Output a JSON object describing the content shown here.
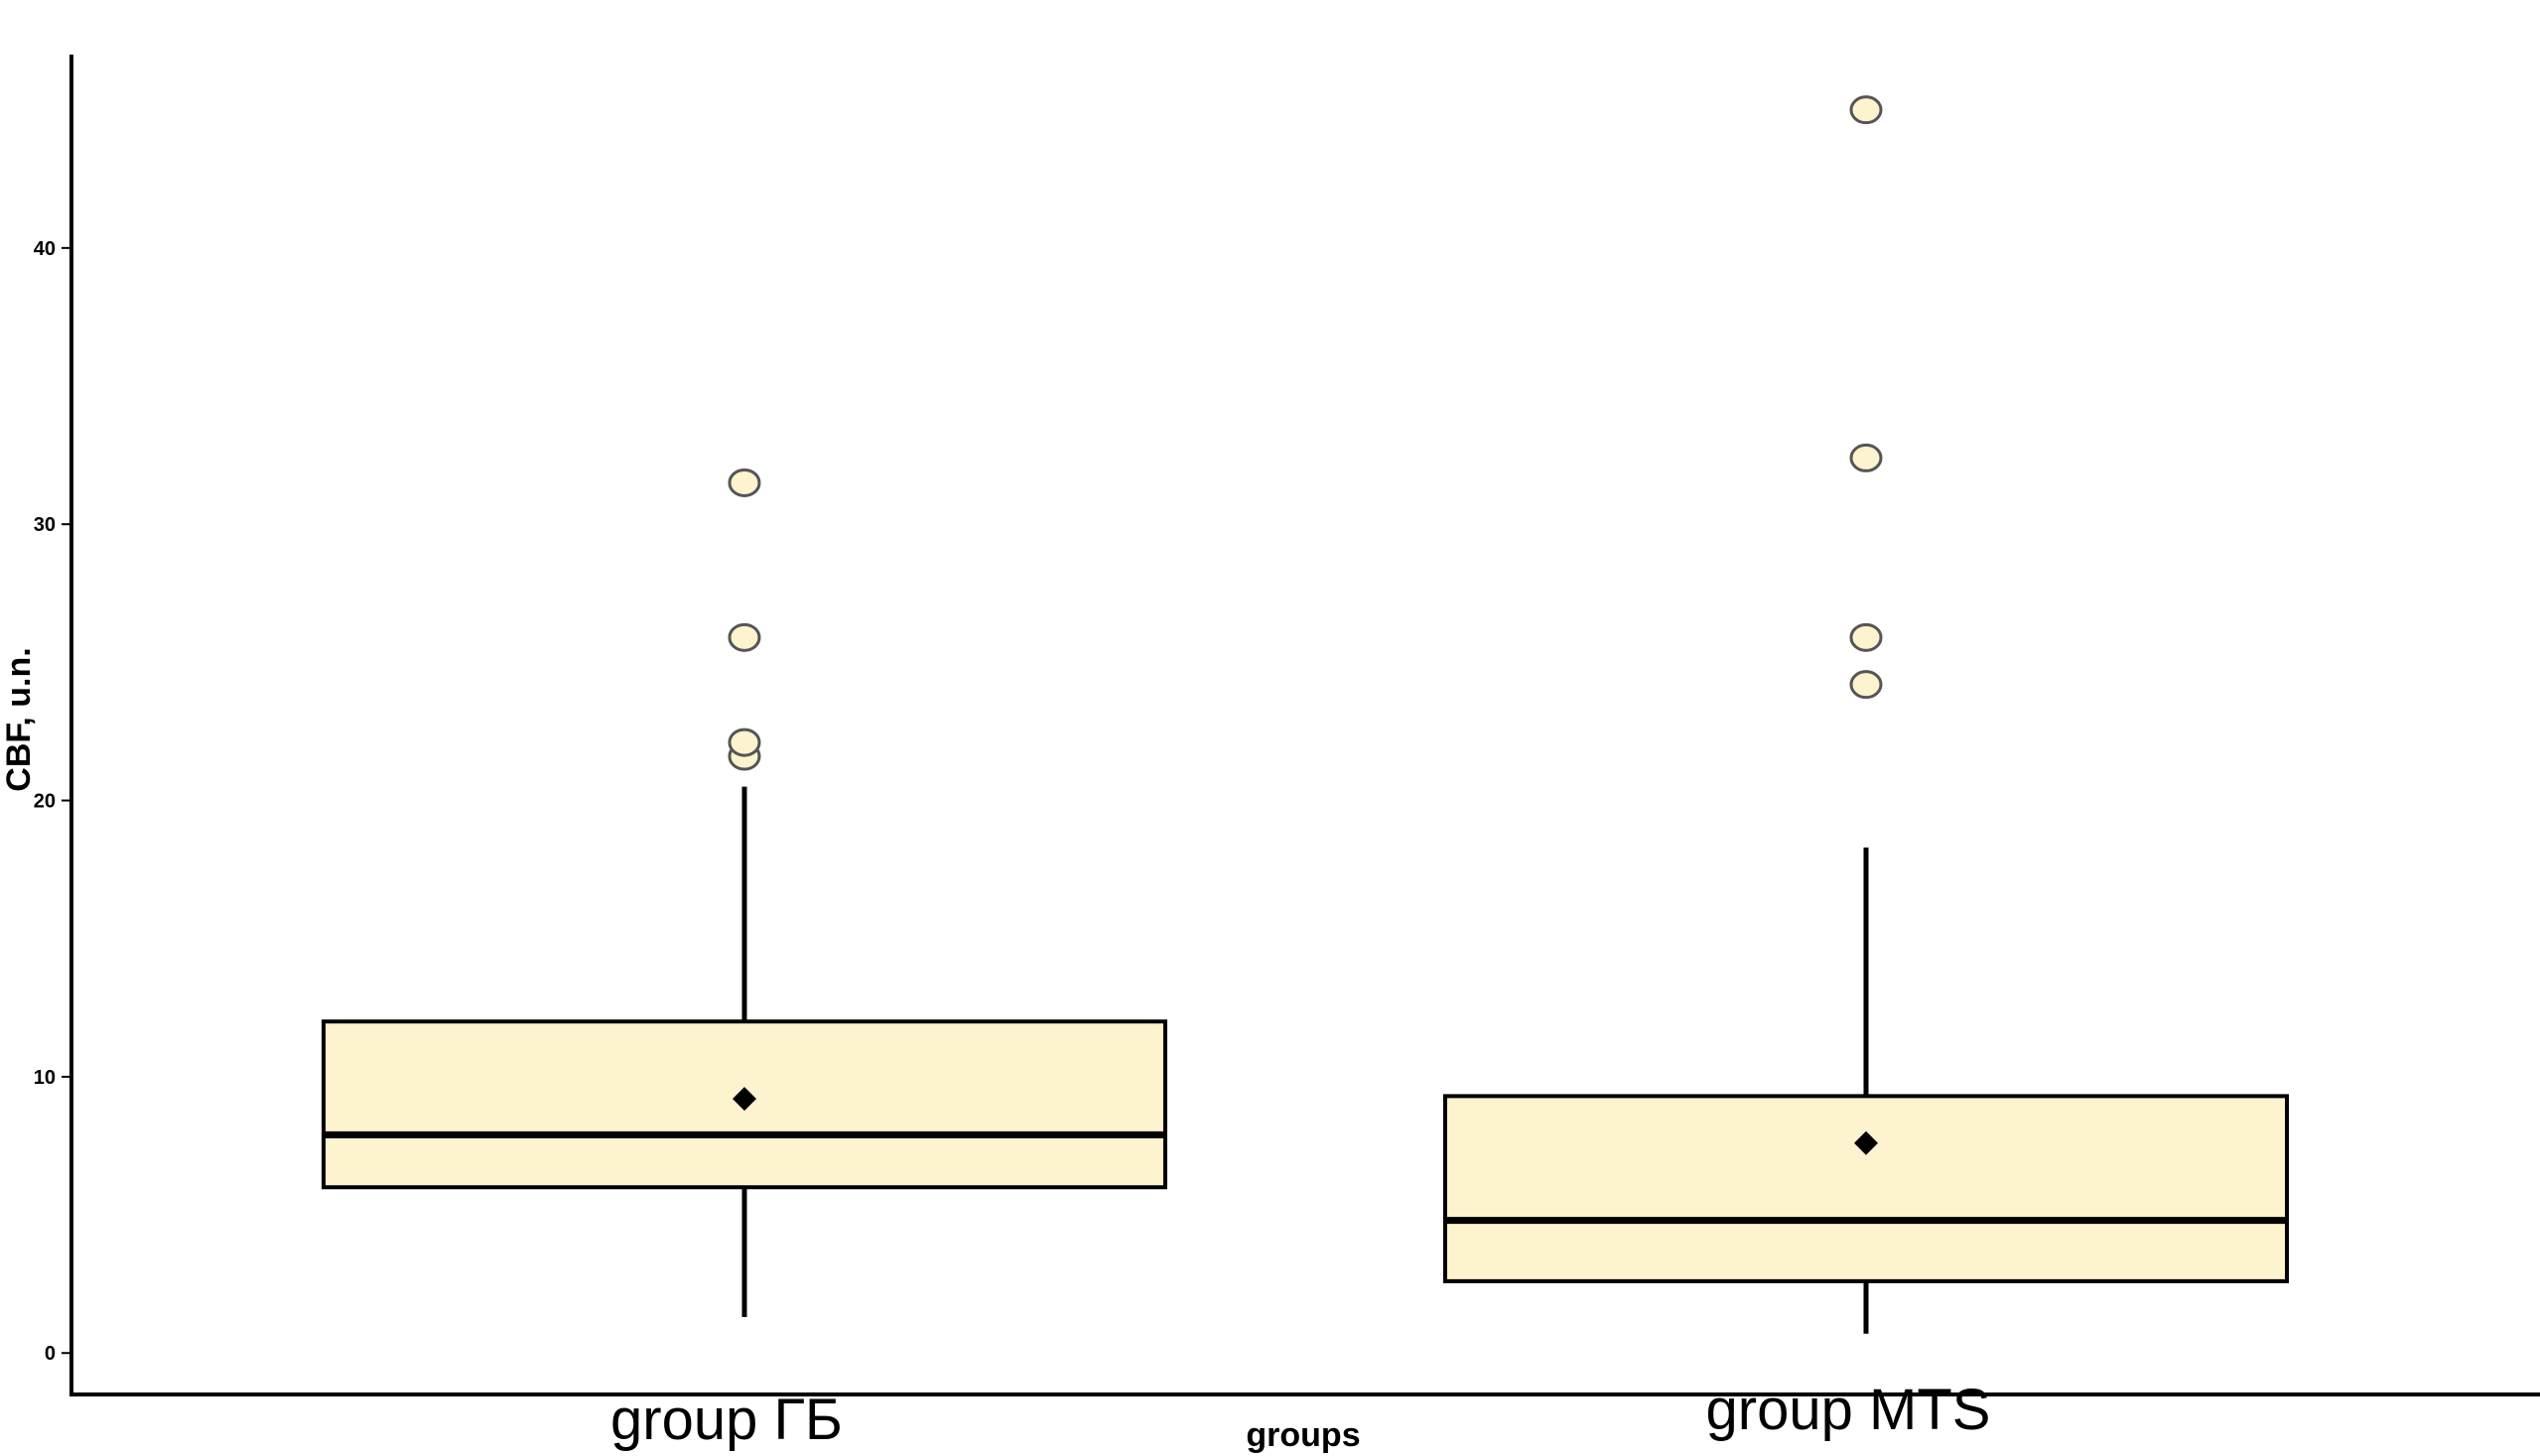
{
  "chart_data": {
    "type": "boxplot",
    "xlabel": "groups",
    "ylabel": "CBF, u.n.",
    "ylim": [
      -1.5,
      47
    ],
    "yticks": [
      0,
      10,
      20,
      30,
      40
    ],
    "ytick_labels": [
      "0",
      "10",
      "20",
      "30",
      "40"
    ],
    "grid": false,
    "legend": "none",
    "colors": {
      "box_fill": "#fdf3cf",
      "outlier_fill": "#fdf3cf",
      "stroke": "#000000",
      "mean_marker": "#000000"
    },
    "categories": [
      "group ГБ",
      "group MTS"
    ],
    "boxes": [
      {
        "category": "group ГБ",
        "whisker_low": 1.3,
        "q1": 6.0,
        "median": 7.9,
        "q3": 12.0,
        "whisker_high": 20.5,
        "mean": 9.2,
        "outliers": [
          21.6,
          22.1,
          25.9,
          31.5
        ]
      },
      {
        "category": "group MTS",
        "whisker_low": 0.7,
        "q1": 2.6,
        "median": 4.8,
        "q3": 9.3,
        "whisker_high": 18.3,
        "mean": 7.6,
        "outliers": [
          24.2,
          25.9,
          32.4,
          45.0
        ]
      }
    ]
  }
}
